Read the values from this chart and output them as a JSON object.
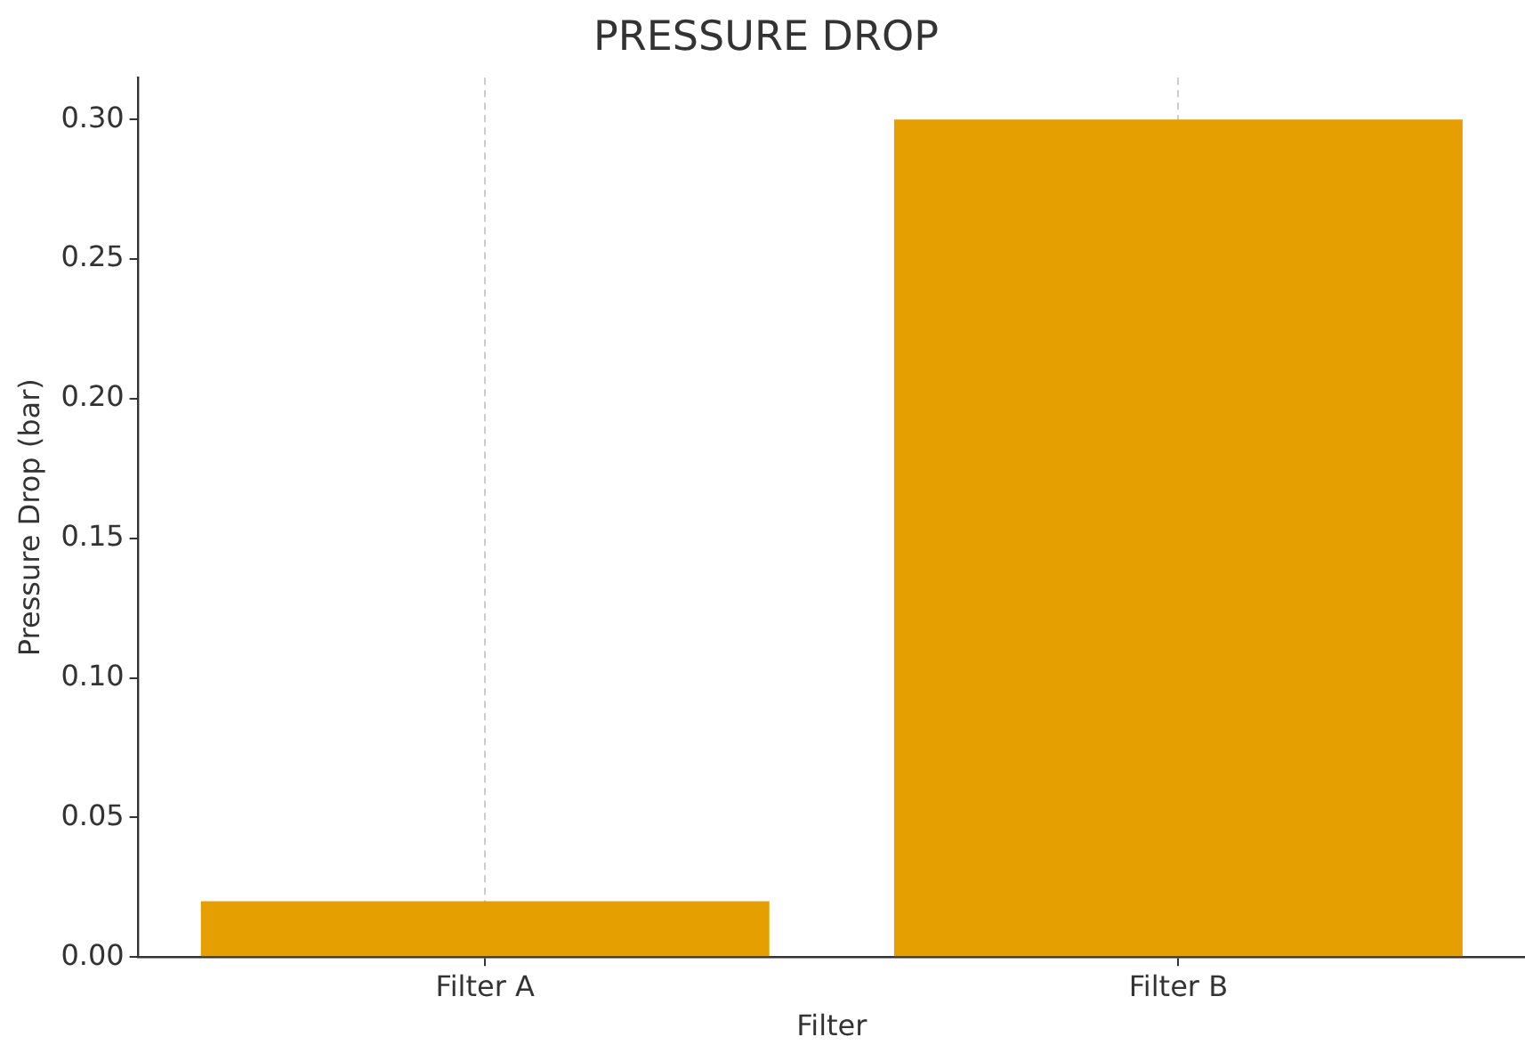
{
  "chart_data": {
    "type": "bar",
    "title": "PRESSURE DROP",
    "xlabel": "Filter",
    "ylabel": "Pressure Drop (bar)",
    "categories": [
      "Filter A",
      "Filter B"
    ],
    "values": [
      0.02,
      0.3
    ],
    "color": "#e69f00",
    "ylim": [
      0,
      0.315
    ],
    "yticks": [
      {
        "value": 0,
        "label": "0.00"
      },
      {
        "value": 0.05,
        "label": "0.05"
      },
      {
        "value": 0.1,
        "label": "0.10"
      },
      {
        "value": 0.15,
        "label": "0.15"
      },
      {
        "value": 0.2,
        "label": "0.20"
      },
      {
        "value": 0.25,
        "label": "0.25"
      },
      {
        "value": 0.3,
        "label": "0.30"
      }
    ],
    "grid": "x"
  }
}
